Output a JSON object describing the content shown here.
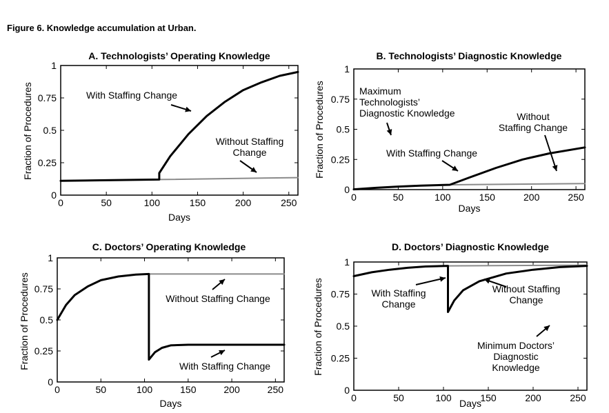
{
  "figure_title": "Figure 6. Knowledge accumulation at Urban.",
  "chart_data": [
    {
      "type": "line",
      "title": "A. Technologists’ Operating Knowledge",
      "xlabel": "Days",
      "ylabel": "Fraction of Procedures",
      "xlim": [
        0,
        260
      ],
      "ylim": [
        0,
        1
      ],
      "xticks": [
        0,
        50,
        100,
        150,
        200,
        250
      ],
      "yticks": [
        0,
        0.25,
        0.5,
        0.75,
        1
      ],
      "ytick_labels": [
        "0",
        "0.25",
        "0.5",
        "0.75",
        "1"
      ],
      "series": [
        {
          "name": "With Staffing Change",
          "style": "thick",
          "x": [
            0,
            50,
            108,
            108,
            120,
            140,
            160,
            180,
            200,
            220,
            240,
            260
          ],
          "y": [
            0.11,
            0.115,
            0.12,
            0.17,
            0.3,
            0.47,
            0.61,
            0.72,
            0.81,
            0.87,
            0.92,
            0.95
          ]
        },
        {
          "name": "Without Staffing Change",
          "style": "thin",
          "x": [
            108,
            260
          ],
          "y": [
            0.12,
            0.135
          ]
        }
      ],
      "annotations": [
        {
          "lines": [
            "With Staffing Change"
          ]
        },
        {
          "lines": [
            "Without Staffing",
            "Change"
          ]
        }
      ]
    },
    {
      "type": "line",
      "title": "B. Technologists’ Diagnostic Knowledge",
      "xlabel": "Days",
      "ylabel": "Fraction of Procedures",
      "xlim": [
        0,
        260
      ],
      "ylim": [
        0,
        1
      ],
      "xticks": [
        0,
        50,
        100,
        150,
        200,
        250
      ],
      "yticks": [
        0,
        0.25,
        0.5,
        0.75,
        1
      ],
      "ytick_labels": [
        "0",
        "0.25",
        "0.5",
        "0.75",
        "1"
      ],
      "series": [
        {
          "name": "With Staffing Change",
          "style": "thick",
          "x": [
            0,
            25,
            50,
            75,
            108,
            130,
            160,
            190,
            220,
            260
          ],
          "y": [
            0.002,
            0.015,
            0.025,
            0.033,
            0.04,
            0.1,
            0.18,
            0.25,
            0.3,
            0.35
          ]
        },
        {
          "name": "Without Staffing Change",
          "style": "thin",
          "x": [
            108,
            260
          ],
          "y": [
            0.04,
            0.05
          ]
        }
      ],
      "annotations": [
        {
          "lines": [
            "Maximum",
            "Technologists’",
            "Diagnostic Knowledge"
          ]
        },
        {
          "lines": [
            "With Staffing Change"
          ]
        },
        {
          "lines": [
            "Without",
            "Staffing Change"
          ]
        }
      ]
    },
    {
      "type": "line",
      "title": "C. Doctors’ Operating Knowledge",
      "xlabel": "Days",
      "ylabel": "Fraction of Procedures",
      "xlim": [
        0,
        260
      ],
      "ylim": [
        0,
        1
      ],
      "xticks": [
        0,
        50,
        100,
        150,
        200,
        250
      ],
      "yticks": [
        0,
        0.25,
        0.5,
        0.75,
        1
      ],
      "ytick_labels": [
        "0",
        "0.25",
        "0.5",
        "0.75",
        "1"
      ],
      "series": [
        {
          "name": "With Staffing Change",
          "style": "thick",
          "x": [
            0,
            10,
            20,
            35,
            50,
            70,
            90,
            105,
            105,
            112,
            120,
            130,
            150,
            200,
            260
          ],
          "y": [
            0.5,
            0.62,
            0.7,
            0.77,
            0.82,
            0.85,
            0.865,
            0.87,
            0.18,
            0.24,
            0.275,
            0.295,
            0.3,
            0.3,
            0.3
          ]
        },
        {
          "name": "Without Staffing Change",
          "style": "thin",
          "x": [
            105,
            260
          ],
          "y": [
            0.87,
            0.87
          ]
        }
      ],
      "annotations": [
        {
          "lines": [
            "Without Staffing Change"
          ]
        },
        {
          "lines": [
            "With Staffing Change"
          ]
        }
      ]
    },
    {
      "type": "line",
      "title": "D. Doctors’ Diagnostic Knowledge",
      "xlabel": "Days",
      "ylabel": "Fraction of Procedures",
      "xlim": [
        0,
        260
      ],
      "ylim": [
        0,
        1
      ],
      "xticks": [
        0,
        50,
        100,
        150,
        200,
        250
      ],
      "yticks": [
        0,
        0.25,
        0.5,
        0.75,
        1
      ],
      "ytick_labels": [
        "0",
        "0.25",
        "0.5",
        "0.75",
        "1"
      ],
      "series": [
        {
          "name": "With Staffing Change",
          "style": "thick",
          "x": [
            0,
            20,
            40,
            60,
            80,
            105,
            105,
            112,
            122,
            140,
            170,
            200,
            230,
            260
          ],
          "y": [
            0.89,
            0.92,
            0.94,
            0.955,
            0.965,
            0.97,
            0.61,
            0.7,
            0.78,
            0.85,
            0.91,
            0.94,
            0.96,
            0.97
          ]
        },
        {
          "name": "Without Staffing Change",
          "style": "thin",
          "x": [
            105,
            260
          ],
          "y": [
            0.97,
            0.975
          ]
        }
      ],
      "annotations": [
        {
          "lines": [
            "With Staffing",
            "Change"
          ]
        },
        {
          "lines": [
            "Without Staffing",
            "Change"
          ]
        },
        {
          "lines": [
            "Minimum Doctors’",
            "Diagnostic",
            "Knowledge"
          ]
        }
      ]
    }
  ]
}
